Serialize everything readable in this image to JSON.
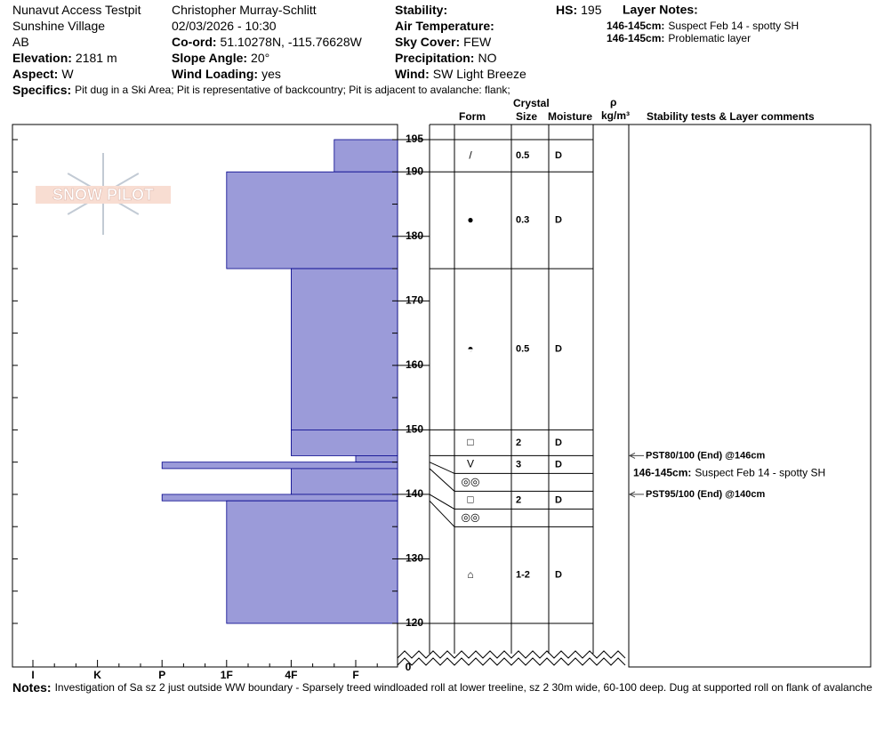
{
  "header": {
    "col1": [
      {
        "value": "Nunavut Access Testpit"
      },
      {
        "value": "Sunshine Village"
      },
      {
        "value": "AB"
      },
      {
        "label": "Elevation:",
        "value": "2181 m"
      },
      {
        "label": "Aspect:",
        "value": "W"
      }
    ],
    "col2": [
      {
        "value": "Christopher Murray-Schlitt"
      },
      {
        "value": "02/03/2026 - 10:30"
      },
      {
        "label": "Co-ord:",
        "value": "51.10278N, -115.76628W"
      },
      {
        "label": "Slope Angle:",
        "value": "20°"
      },
      {
        "label": "Wind Loading:",
        "value": "yes"
      }
    ],
    "col3": [
      {
        "label": "Stability:"
      },
      {
        "label": "Air Temperature:"
      },
      {
        "label": "Sky Cover:",
        "value": "FEW"
      },
      {
        "label": "Precipitation:",
        "value": "NO"
      },
      {
        "label": "Wind:",
        "value": "SW Light Breeze"
      }
    ],
    "hs": {
      "label": "HS:",
      "value": 195
    },
    "layer_notes": {
      "title": "Layer Notes:",
      "items": [
        {
          "label": "146-145cm:",
          "value": "Suspect Feb 14 - spotty SH"
        },
        {
          "label": "146-145cm:",
          "value": "Problematic layer"
        }
      ]
    },
    "specifics": {
      "label": "Specifics:",
      "value": "Pit dug in a Ski Area; Pit is representative of backcountry; Pit is adjacent to avalanche: flank;"
    }
  },
  "logo": "SNOW PILOT",
  "columns": {
    "crystal": "Crystal",
    "form": "Form",
    "size": "Size",
    "moisture": "Moisture",
    "rho": "ρ",
    "density_unit": "kg/m³",
    "comments": "Stability tests & Layer comments"
  },
  "hardness_ticks": [
    "I",
    "K",
    "P",
    "1F",
    "4F",
    "F"
  ],
  "ylim": [
    120,
    195
  ],
  "height_ticks": [
    195,
    190,
    180,
    170,
    160,
    150,
    140,
    130,
    120
  ],
  "break_tick": 0,
  "layers": [
    {
      "top": 195,
      "bottom": 190,
      "hardness": "F+",
      "form": "/",
      "size": 0.5,
      "moisture": "D"
    },
    {
      "top": 190,
      "bottom": 175,
      "hardness": "1F",
      "form": "●",
      "size": 0.3,
      "moisture": "D"
    },
    {
      "top": 175,
      "bottom": 150,
      "hardness": "4F",
      "form": "◓",
      "size": 0.5,
      "moisture": "D"
    },
    {
      "top": 150,
      "bottom": 146,
      "hardness": "4F",
      "form": "□",
      "size": 2,
      "moisture": "D"
    },
    {
      "top": 146,
      "bottom": 145,
      "hardness": "F",
      "form": "V",
      "size": 3,
      "moisture": "D"
    },
    {
      "top": 145,
      "bottom": 144,
      "hardness": "P",
      "form": "◎◎"
    },
    {
      "top": 144,
      "bottom": 140,
      "hardness": "4F",
      "form": "□",
      "size": 2,
      "moisture": "D"
    },
    {
      "top": 140,
      "bottom": 139,
      "hardness": "P",
      "form": "◎◎"
    },
    {
      "top": 139,
      "bottom": 120,
      "hardness": "1F",
      "form": "⌂",
      "size": "1-2",
      "moisture": "D"
    }
  ],
  "tests": [
    {
      "text": "PST80/100 (End) @146cm",
      "depth": 146
    },
    {
      "text": "PST95/100 (End) @140cm",
      "depth": 140
    }
  ],
  "comments": [
    {
      "label": "146-145cm:",
      "value": "Suspect Feb 14 - spotty SH"
    }
  ],
  "notes": {
    "label": "Notes:",
    "value": "Investigation of Sa sz 2 just outside WW boundary - Sparsely treed windloaded roll at lower treeline, sz 2 30m wide, 60-100 deep. Dug at supported roll on flank of avalanche"
  }
}
